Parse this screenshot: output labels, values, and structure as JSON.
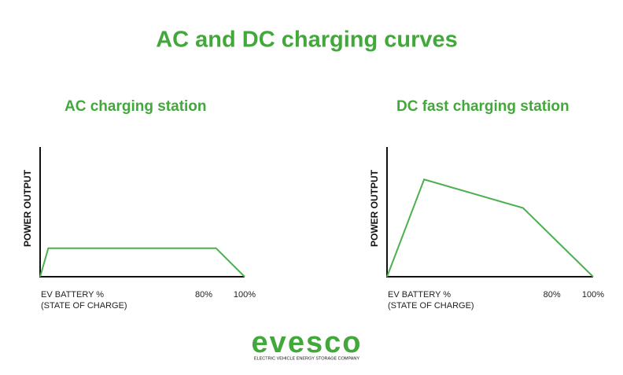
{
  "header": {
    "title": "AC and DC charging curves"
  },
  "chart_data": [
    {
      "type": "line",
      "title": "AC charging station",
      "ylabel": "POWER OUTPUT",
      "xlabel": [
        "EV BATTERY %",
        "(STATE OF CHARGE)"
      ],
      "x": [
        0,
        4,
        86,
        100
      ],
      "values": [
        0,
        22,
        22,
        0
      ],
      "color": "#4caf50",
      "xlim": [
        0,
        100
      ],
      "ylim": [
        0,
        100
      ],
      "xticks": [
        {
          "value": 80,
          "label": "80%"
        },
        {
          "value": 100,
          "label": "100%"
        }
      ]
    },
    {
      "type": "line",
      "title": "DC fast charging station",
      "ylabel": "POWER OUTPUT",
      "xlabel": [
        "EV BATTERY %",
        "(STATE OF CHARGE)"
      ],
      "x": [
        0,
        18,
        66,
        100
      ],
      "values": [
        0,
        75,
        53,
        0
      ],
      "color": "#4caf50",
      "xlim": [
        0,
        100
      ],
      "ylim": [
        0,
        100
      ],
      "xticks": [
        {
          "value": 80,
          "label": "80%"
        },
        {
          "value": 100,
          "label": "100%"
        }
      ]
    }
  ],
  "logo": {
    "name": "evesco",
    "tagline": "ELECTRIC VEHICLE ENERGY STORAGE COMPANY"
  }
}
